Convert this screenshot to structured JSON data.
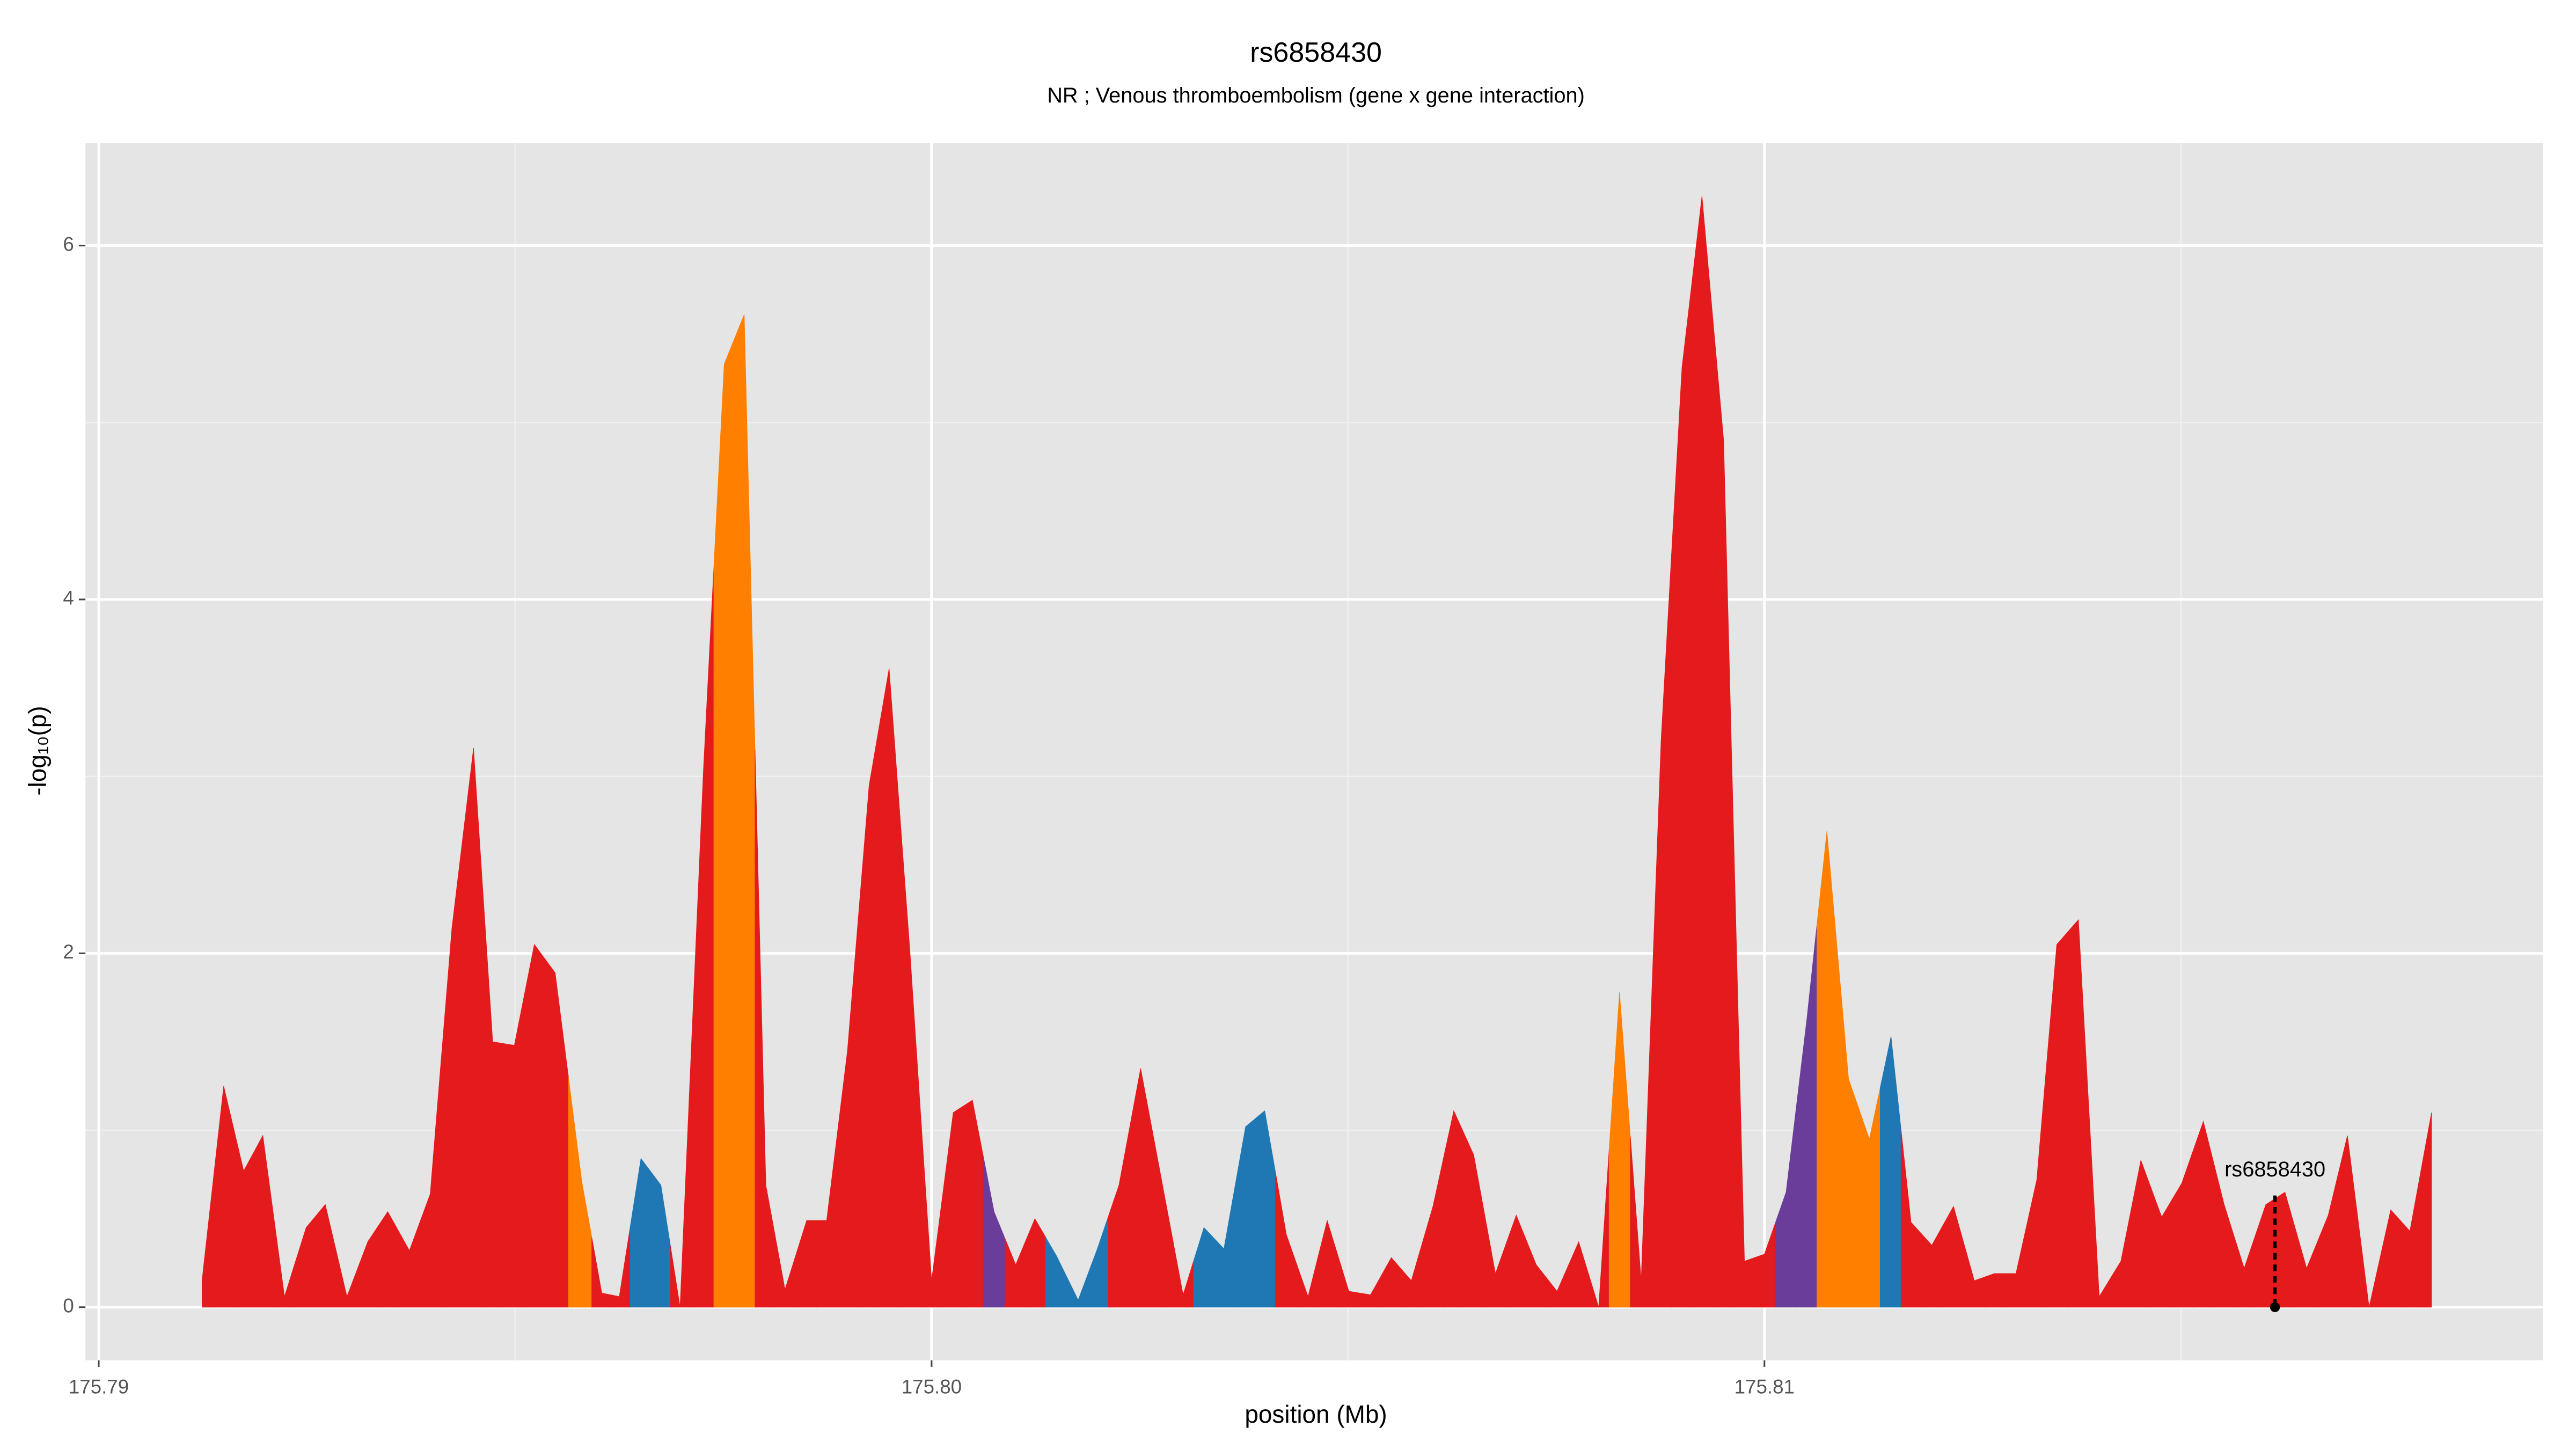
{
  "chart_data": {
    "type": "area",
    "title": "rs6858430",
    "subtitle": "NR ; Venous thromboembolism (gene x gene interaction)",
    "x_label": "position (Mb)",
    "y_label": "-log₁₀(p)",
    "xlim": [
      175.78984,
      175.81935
    ],
    "ylim": [
      -0.3,
      6.58
    ],
    "xticks": [
      175.79,
      {
        "value": 175.8,
        "label": "175.80"
      },
      175.81
    ],
    "yticks": [
      0,
      2,
      4,
      6
    ],
    "minor_xticks": [
      175.795,
      175.805,
      175.815
    ],
    "minor_yticks": [
      1,
      3,
      5
    ],
    "grid": true,
    "x": [
      175.79124,
      175.7915,
      175.79174,
      175.79197,
      175.79223,
      175.79249,
      175.79272,
      175.79298,
      175.79323,
      175.79347,
      175.79373,
      175.79398,
      175.79424,
      175.7945,
      175.79473,
      175.79499,
      175.79523,
      175.79548,
      175.7958,
      175.79604,
      175.79625,
      175.79651,
      175.79675,
      175.79698,
      175.79726,
      175.79751,
      175.79775,
      175.79801,
      175.79824,
      175.7985,
      175.79874,
      175.79899,
      175.79925,
      175.79949,
      175.79974,
      175.8,
      175.80026,
      175.80049,
      175.80075,
      175.80101,
      175.80124,
      175.8015,
      175.80176,
      175.80199,
      175.80225,
      175.80251,
      175.80302,
      175.80327,
      175.80351,
      175.80377,
      175.804,
      175.80426,
      175.80452,
      175.80475,
      175.80501,
      175.80527,
      175.80552,
      175.80576,
      175.80602,
      175.80627,
      175.80651,
      175.80677,
      175.80702,
      175.80726,
      175.80751,
      175.80777,
      175.80801,
      175.80826,
      175.80852,
      175.80876,
      175.80901,
      175.80925,
      175.80951,
      175.80976,
      175.81,
      175.81026,
      175.81051,
      175.81075,
      175.81101,
      175.81126,
      175.81152,
      175.81176,
      175.81201,
      175.81227,
      175.81252,
      175.81276,
      175.81302,
      175.81327,
      175.81351,
      175.81377,
      175.81402,
      175.81428,
      175.81452,
      175.81477,
      175.81501,
      175.81527,
      175.81552,
      175.81576,
      175.81602,
      175.81625,
      175.81651,
      175.81677,
      175.817,
      175.81726,
      175.81752,
      175.81775,
      175.81801
    ],
    "values": [
      0.15,
      1.25,
      0.77,
      0.97,
      0.06,
      0.45,
      0.58,
      0.06,
      0.37,
      0.54,
      0.32,
      0.64,
      2.14,
      3.16,
      1.5,
      1.48,
      2.05,
      1.89,
      0.71,
      0.08,
      0.06,
      0.84,
      0.69,
      0,
      3.03,
      5.33,
      5.61,
      0.69,
      0.1,
      0.49,
      0.49,
      1.45,
      2.95,
      3.61,
      2.01,
      0.15,
      1.1,
      1.17,
      0.54,
      0.24,
      0.5,
      0.29,
      0.04,
      0.33,
      0.69,
      1.35,
      0.07,
      0.45,
      0.33,
      1.02,
      1.11,
      0.41,
      0.06,
      0.49,
      0.09,
      0.07,
      0.28,
      0.15,
      0.57,
      1.11,
      0.86,
      0.19,
      0.52,
      0.24,
      0.09,
      0.37,
      0,
      1.78,
      0.15,
      3.21,
      5.31,
      6.28,
      4.9,
      0.26,
      0.3,
      0.65,
      1.63,
      2.69,
      1.29,
      0.95,
      1.53,
      0.48,
      0.35,
      0.57,
      0.15,
      0.19,
      0.19,
      0.72,
      2.05,
      2.19,
      0.06,
      0.26,
      0.83,
      0.51,
      0.7,
      1.05,
      0.58,
      0.22,
      0.58,
      0.65,
      0.22,
      0.52,
      0.97,
      0,
      0.55,
      0.43,
      1.1
    ],
    "colors": [
      "#e41a1c",
      "#e41a1c",
      "#e41a1c",
      "#e41a1c",
      "#e41a1c",
      "#e41a1c",
      "#e41a1c",
      "#e41a1c",
      "#e41a1c",
      "#e41a1c",
      "#e41a1c",
      "#e41a1c",
      "#e41a1c",
      "#e41a1c",
      "#e41a1c",
      "#e41a1c",
      "#e41a1c",
      "#e41a1c",
      "#ff7f00",
      "#e41a1c",
      "#e41a1c",
      "#1f78b4",
      "#1f78b4",
      "#e41a1c",
      "#e41a1c",
      "#ff7f00",
      "#ff7f00",
      "#e41a1c",
      "#e41a1c",
      "#e41a1c",
      "#e41a1c",
      "#e41a1c",
      "#e41a1c",
      "#e41a1c",
      "#e41a1c",
      "#e41a1c",
      "#e41a1c",
      "#e41a1c",
      "#6a3d9a",
      "#e41a1c",
      "#e41a1c",
      "#1f78b4",
      "#1f78b4",
      "#1f78b4",
      "#e41a1c",
      "#e41a1c",
      "#e41a1c",
      "#1f78b4",
      "#1f78b4",
      "#1f78b4",
      "#1f78b4",
      "#e41a1c",
      "#e41a1c",
      "#e41a1c",
      "#e41a1c",
      "#e41a1c",
      "#e41a1c",
      "#e41a1c",
      "#e41a1c",
      "#e41a1c",
      "#e41a1c",
      "#e41a1c",
      "#e41a1c",
      "#e41a1c",
      "#e41a1c",
      "#e41a1c",
      "#e41a1c",
      "#ff7f00",
      "#e41a1c",
      "#e41a1c",
      "#e41a1c",
      "#e41a1c",
      "#e41a1c",
      "#e41a1c",
      "#e41a1c",
      "#6a3d9a",
      "#6a3d9a",
      "#ff7f00",
      "#ff7f00",
      "#ff7f00",
      "#1f78b4",
      "#e41a1c",
      "#e41a1c",
      "#e41a1c",
      "#e41a1c",
      "#e41a1c",
      "#e41a1c",
      "#e41a1c",
      "#e41a1c",
      "#e41a1c",
      "#e41a1c",
      "#e41a1c",
      "#e41a1c",
      "#e41a1c",
      "#e41a1c",
      "#e41a1c",
      "#e41a1c",
      "#e41a1c",
      "#e41a1c",
      "#e41a1c",
      "#e41a1c",
      "#e41a1c",
      "#e41a1c",
      "#e41a1c",
      "#e41a1c",
      "#e41a1c",
      "#e41a1c"
    ],
    "annotation": {
      "text": "rs6858430",
      "x": 175.81613
    }
  }
}
